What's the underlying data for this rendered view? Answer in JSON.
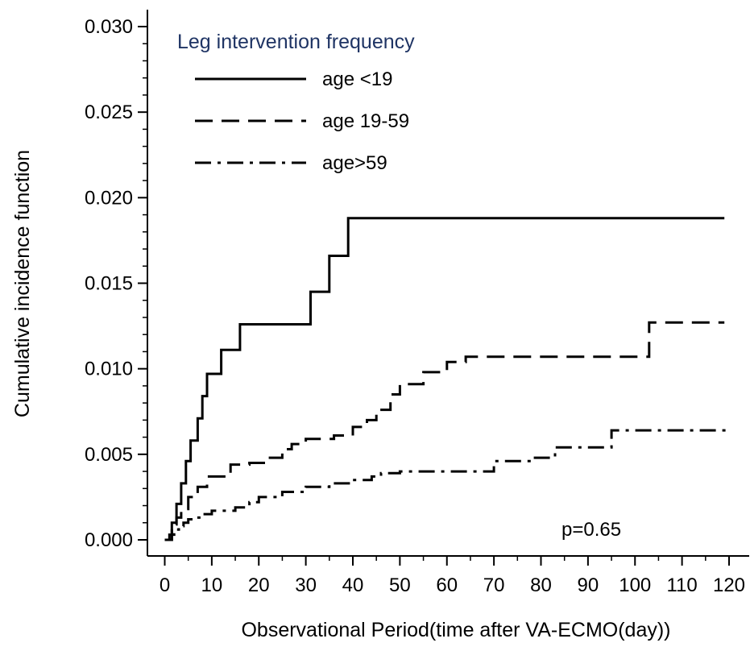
{
  "chart_data": {
    "type": "line",
    "step": true,
    "xlabel": "Observational Period(time after VA-ECMO(day))",
    "ylabel": "Cumulative incidence function",
    "xlim": [
      0,
      120
    ],
    "ylim": [
      0,
      0.03
    ],
    "xticks": [
      0,
      10,
      20,
      30,
      40,
      50,
      60,
      70,
      80,
      90,
      100,
      110,
      120
    ],
    "xtick_labels": [
      "0",
      "10",
      "20",
      "30",
      "40",
      "50",
      "60",
      "70",
      "80",
      "90",
      "100",
      "110",
      "120"
    ],
    "yticks": [
      0,
      0.005,
      0.01,
      0.015,
      0.02,
      0.025,
      0.03
    ],
    "ytick_labels": [
      "0.000",
      "0.005",
      "0.010",
      "0.015",
      "0.020",
      "0.025",
      "0.030"
    ],
    "grid": false,
    "legend": {
      "title": "Leg intervention frequency",
      "placement": "top-left",
      "title_color": "#1f3464"
    },
    "annotation": "p=0.65",
    "series": [
      {
        "name": "age <19",
        "style": "solid",
        "x": [
          0,
          1.5,
          2.5,
          3.5,
          4.5,
          5.5,
          7,
          8,
          9,
          12,
          16,
          31,
          35,
          39,
          119
        ],
        "y": [
          0,
          0.001,
          0.0021,
          0.0033,
          0.0046,
          0.0058,
          0.0071,
          0.0084,
          0.0097,
          0.0111,
          0.0126,
          0.0145,
          0.0166,
          0.0188,
          0.0188
        ]
      },
      {
        "name": "age 19-59",
        "style": "dashed",
        "x": [
          0,
          1.5,
          2.5,
          3.5,
          5,
          7,
          9,
          14,
          18,
          22,
          25,
          27,
          30,
          36,
          40,
          43,
          45,
          48,
          50,
          55,
          60,
          64,
          80,
          103,
          119
        ],
        "y": [
          0,
          0.0009,
          0.0013,
          0.0018,
          0.0025,
          0.0031,
          0.0037,
          0.0044,
          0.0045,
          0.0048,
          0.0053,
          0.0056,
          0.0059,
          0.0061,
          0.0066,
          0.007,
          0.0076,
          0.0085,
          0.0091,
          0.0098,
          0.0104,
          0.0107,
          0.0107,
          0.0127,
          0.0127
        ]
      },
      {
        "name": "age>59",
        "style": "dashdot",
        "x": [
          0,
          1,
          2,
          3,
          4,
          5,
          6,
          8,
          10,
          15,
          18,
          20,
          25,
          30,
          35,
          40,
          44,
          46,
          50,
          60,
          70,
          78,
          83,
          95,
          120
        ],
        "y": [
          0,
          0.0003,
          0.0006,
          0.0008,
          0.001,
          0.0012,
          0.0013,
          0.0015,
          0.0017,
          0.0019,
          0.0022,
          0.0025,
          0.0028,
          0.0031,
          0.0033,
          0.0035,
          0.0037,
          0.0039,
          0.004,
          0.004,
          0.0046,
          0.0048,
          0.0054,
          0.0064,
          0.0064
        ]
      }
    ]
  }
}
